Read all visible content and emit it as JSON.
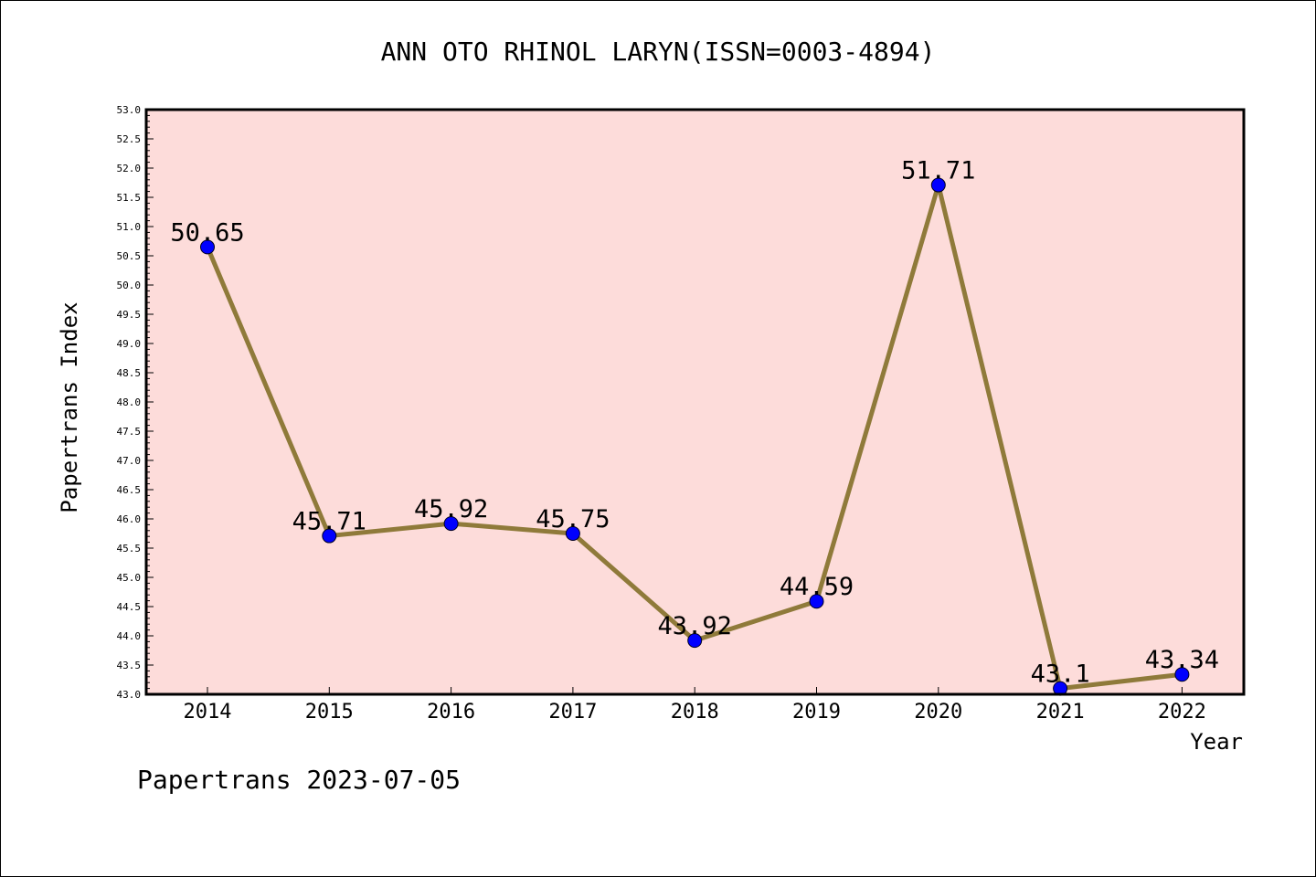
{
  "chart_data": {
    "type": "line",
    "title": "ANN OTO RHINOL LARYN(ISSN=0003-4894)",
    "xlabel": "Year",
    "ylabel": "Papertrans Index",
    "categories": [
      "2014",
      "2015",
      "2016",
      "2017",
      "2018",
      "2019",
      "2020",
      "2021",
      "2022"
    ],
    "values": [
      50.65,
      45.71,
      45.92,
      45.75,
      43.92,
      44.59,
      51.71,
      43.1,
      43.34
    ],
    "data_labels": [
      "50.65",
      "45.71",
      "45.92",
      "45.75",
      "43.92",
      "44.59",
      "51.71",
      "43.1",
      "43.34"
    ],
    "ylim": [
      43.0,
      53.0
    ],
    "yticks": [
      "43.0",
      "43.5",
      "44.0",
      "44.5",
      "45.0",
      "45.5",
      "46.0",
      "46.5",
      "47.0",
      "47.5",
      "48.0",
      "48.5",
      "49.0",
      "49.5",
      "50.0",
      "50.5",
      "51.0",
      "51.5",
      "52.0",
      "52.5",
      "53.0"
    ],
    "grid": false,
    "colors": {
      "plot_background": "#FDDCDA",
      "line": "#8F7A3A",
      "marker": "#0000FF"
    }
  },
  "footer": {
    "text": "Papertrans 2023-07-05"
  }
}
